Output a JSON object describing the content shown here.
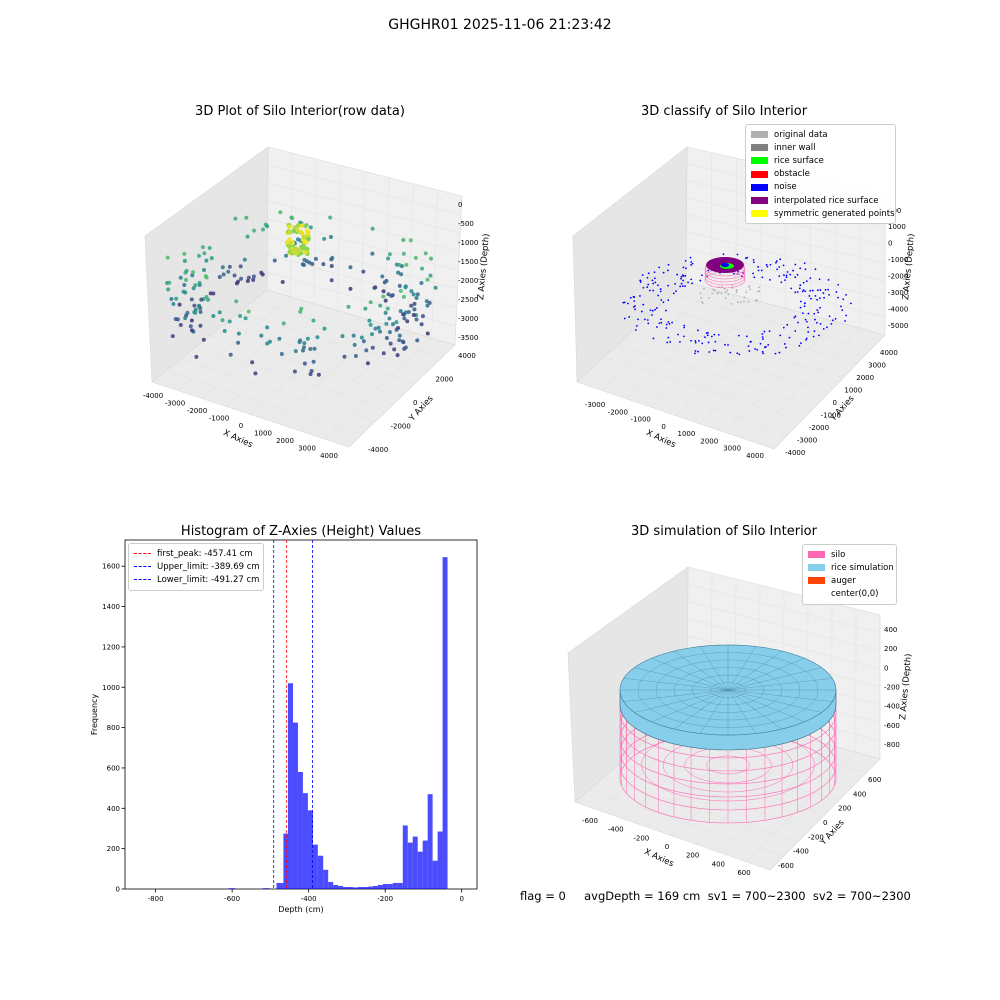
{
  "figure": {
    "suptitle": "GHGHR01 2025-11-06 21:23:42",
    "status_line": "flag = 0     avgDepth = 169 cm  sv1 = 700~2300  sv2 = 700~2300"
  },
  "chart_data": [
    {
      "type": "scatter",
      "projection": "3d",
      "title": "3D Plot of Silo Interior(row data)",
      "xlabel": "X Axies",
      "ylabel": "Y Axies",
      "zlabel": "Z Axies (Depth)",
      "xlim": [
        -4000,
        4000
      ],
      "ylim": [
        -4000,
        4000
      ],
      "zlim": [
        -3500,
        0
      ],
      "x_ticks": [
        "-4000",
        "-3000",
        "-2000",
        "-1000",
        "0",
        "1000",
        "2000",
        "3000",
        "4000"
      ],
      "y_ticks": [
        "-4000",
        "-2000",
        "0",
        "2000",
        "4000"
      ],
      "z_ticks": [
        "0",
        "-500",
        "-1000",
        "-1500",
        "-2000",
        "-2500",
        "-3000",
        "-3500"
      ],
      "colormap": "viridis (colored by depth)",
      "grid": true
    },
    {
      "type": "scatter",
      "projection": "3d",
      "title": "3D classify of Silo Interior",
      "xlabel": "X Axies",
      "ylabel": "Y Axies",
      "zlabel": "Z Axies (Depth)",
      "x_ticks": [
        "-3000",
        "-2000",
        "-1000",
        "0",
        "1000",
        "2000",
        "3000",
        "4000"
      ],
      "y_ticks": [
        "-4000",
        "-3000",
        "-2000",
        "-1000",
        "0",
        "1000",
        "2000",
        "3000",
        "4000"
      ],
      "z_ticks": [
        "1000",
        "0",
        "-1000",
        "-2000",
        "-3000",
        "-4000",
        "-5000"
      ],
      "z_partial_tick": "000",
      "legend_position": "upper right",
      "legend": [
        {
          "label": "original data",
          "color": "#b0b0b0"
        },
        {
          "label": "inner wall",
          "color": "#808080"
        },
        {
          "label": "rice surface",
          "color": "#00ff00"
        },
        {
          "label": "obstacle",
          "color": "#ff0000"
        },
        {
          "label": "noise",
          "color": "#0000ff"
        },
        {
          "label": "interpolated rice surface",
          "color": "#800080"
        },
        {
          "label": "symmetric generated points",
          "color": "#ffff00"
        }
      ],
      "grid": true
    },
    {
      "type": "bar",
      "subtype": "histogram",
      "title": "Histogram of Z-Axies (Height) Values",
      "xlabel": "Depth (cm)",
      "ylabel": "Frequency",
      "xlim": [
        -880,
        40
      ],
      "ylim": [
        0,
        1730
      ],
      "x_ticks": [
        -800,
        -600,
        -400,
        -200,
        0
      ],
      "y_ticks": [
        0,
        200,
        400,
        600,
        800,
        1000,
        1200,
        1400,
        1600
      ],
      "bar_color": "#0000ff",
      "bar_alpha": 0.7,
      "bins": [
        {
          "x0": -880,
          "x1": -862,
          "count": 0
        },
        {
          "x0": -862,
          "x1": -844,
          "count": 0
        },
        {
          "x0": -844,
          "x1": -826,
          "count": 0
        },
        {
          "x0": -826,
          "x1": -808,
          "count": 0
        },
        {
          "x0": -808,
          "x1": -790,
          "count": 0
        },
        {
          "x0": -790,
          "x1": -772,
          "count": 0
        },
        {
          "x0": -772,
          "x1": -754,
          "count": 0
        },
        {
          "x0": -754,
          "x1": -736,
          "count": 0
        },
        {
          "x0": -736,
          "x1": -718,
          "count": 0
        },
        {
          "x0": -718,
          "x1": -700,
          "count": 0
        },
        {
          "x0": -700,
          "x1": -682,
          "count": 0
        },
        {
          "x0": -682,
          "x1": -664,
          "count": 0
        },
        {
          "x0": -664,
          "x1": -646,
          "count": 0
        },
        {
          "x0": -646,
          "x1": -628,
          "count": 0
        },
        {
          "x0": -628,
          "x1": -610,
          "count": 0
        },
        {
          "x0": -610,
          "x1": -592,
          "count": 4
        },
        {
          "x0": -592,
          "x1": -574,
          "count": 0
        },
        {
          "x0": -574,
          "x1": -556,
          "count": 0
        },
        {
          "x0": -556,
          "x1": -538,
          "count": 0
        },
        {
          "x0": -538,
          "x1": -520,
          "count": 0
        },
        {
          "x0": -520,
          "x1": -502,
          "count": 4
        },
        {
          "x0": -502,
          "x1": -484,
          "count": 0
        },
        {
          "x0": -484,
          "x1": -466,
          "count": 30
        },
        {
          "x0": -466,
          "x1": -454,
          "count": 275
        },
        {
          "x0": -454,
          "x1": -441,
          "count": 1020
        },
        {
          "x0": -441,
          "x1": -428,
          "count": 825
        },
        {
          "x0": -428,
          "x1": -415,
          "count": 580
        },
        {
          "x0": -415,
          "x1": -402,
          "count": 475
        },
        {
          "x0": -402,
          "x1": -389,
          "count": 390
        },
        {
          "x0": -389,
          "x1": -376,
          "count": 220
        },
        {
          "x0": -376,
          "x1": -362,
          "count": 165
        },
        {
          "x0": -362,
          "x1": -349,
          "count": 95
        },
        {
          "x0": -349,
          "x1": -336,
          "count": 35
        },
        {
          "x0": -336,
          "x1": -323,
          "count": 20
        },
        {
          "x0": -323,
          "x1": -310,
          "count": 15
        },
        {
          "x0": -310,
          "x1": -297,
          "count": 10
        },
        {
          "x0": -297,
          "x1": -284,
          "count": 10
        },
        {
          "x0": -284,
          "x1": -271,
          "count": 8
        },
        {
          "x0": -271,
          "x1": -258,
          "count": 10
        },
        {
          "x0": -258,
          "x1": -245,
          "count": 10
        },
        {
          "x0": -245,
          "x1": -232,
          "count": 12
        },
        {
          "x0": -232,
          "x1": -219,
          "count": 15
        },
        {
          "x0": -219,
          "x1": -206,
          "count": 20
        },
        {
          "x0": -206,
          "x1": -193,
          "count": 25
        },
        {
          "x0": -193,
          "x1": -180,
          "count": 25
        },
        {
          "x0": -180,
          "x1": -167,
          "count": 30
        },
        {
          "x0": -167,
          "x1": -154,
          "count": 30
        },
        {
          "x0": -154,
          "x1": -141,
          "count": 315
        },
        {
          "x0": -141,
          "x1": -128,
          "count": 230
        },
        {
          "x0": -128,
          "x1": -115,
          "count": 260
        },
        {
          "x0": -115,
          "x1": -102,
          "count": 185
        },
        {
          "x0": -102,
          "x1": -89,
          "count": 240
        },
        {
          "x0": -89,
          "x1": -76,
          "count": 470
        },
        {
          "x0": -76,
          "x1": -63,
          "count": 140
        },
        {
          "x0": -63,
          "x1": -50,
          "count": 285
        },
        {
          "x0": -50,
          "x1": -37,
          "count": 1645
        }
      ],
      "vlines": [
        {
          "label": "first_peak: -457.41 cm",
          "x": -457.41,
          "color": "#ff0000",
          "style": "dashed"
        },
        {
          "label": "Upper_limit: -389.69 cm",
          "x": -389.69,
          "color": "#0000ff",
          "style": "dashed"
        },
        {
          "label": "Lower_limit: -491.27 cm",
          "x": -491.27,
          "color": "#0000ff",
          "style": "dashed"
        }
      ],
      "legend_position": "upper left",
      "grid": false
    },
    {
      "type": "surface",
      "projection": "3d",
      "title": "3D simulation of Silo Interior",
      "xlabel": "X Axies",
      "ylabel": "Y Axies",
      "zlabel": "Z Axies (Depth)",
      "x_ticks": [
        "-600",
        "-400",
        "-200",
        "0",
        "200",
        "400",
        "600"
      ],
      "y_ticks": [
        "600",
        "400",
        "200",
        "0",
        "-200",
        "-400",
        "-600"
      ],
      "z_ticks": [
        "400",
        "200",
        "0",
        "-200",
        "-400",
        "-600",
        "-800"
      ],
      "legend_position": "upper right",
      "legend": [
        {
          "label": "silo",
          "color": "#ff69b4"
        },
        {
          "label": "rice simulation",
          "color": "#87ceeb"
        },
        {
          "label": "auger",
          "color": "#ff4500"
        },
        {
          "label": "center(0,0)",
          "color": ""
        }
      ],
      "grid": true
    }
  ]
}
